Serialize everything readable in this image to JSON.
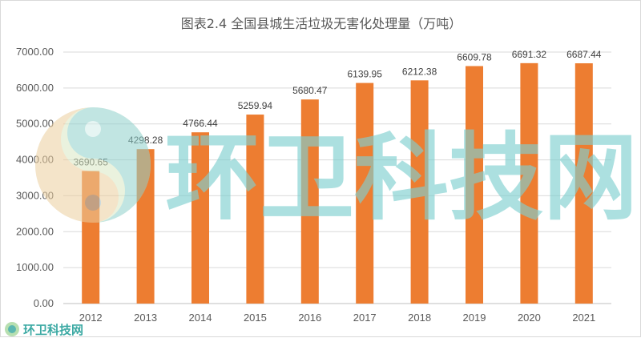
{
  "chart_data": {
    "type": "bar",
    "title": "图表2.4 全国县城生活垃圾无害化处理量（万吨）",
    "categories": [
      "2012",
      "2013",
      "2014",
      "2015",
      "2016",
      "2017",
      "2018",
      "2019",
      "2020",
      "2021"
    ],
    "values": [
      3690.65,
      4298.28,
      4766.44,
      5259.94,
      5680.47,
      6139.95,
      6212.38,
      6609.78,
      6691.32,
      6687.44
    ],
    "value_labels": [
      "3690.65",
      "4298.28",
      "4766.44",
      "5259.94",
      "5680.47",
      "6139.95",
      "6212.38",
      "6609.78",
      "6691.32",
      "6687.44"
    ],
    "ylim": [
      0,
      7000
    ],
    "y_ticks": [
      "0.00",
      "1000.00",
      "2000.00",
      "3000.00",
      "4000.00",
      "5000.00",
      "6000.00",
      "7000.00"
    ],
    "xlabel": "",
    "ylabel": "",
    "grid": "horizontal",
    "legend": "none",
    "bar_color": "#ED7D31"
  },
  "watermark": {
    "text": "环卫科技网"
  },
  "footer_logo": {
    "text": "环卫科技网"
  }
}
